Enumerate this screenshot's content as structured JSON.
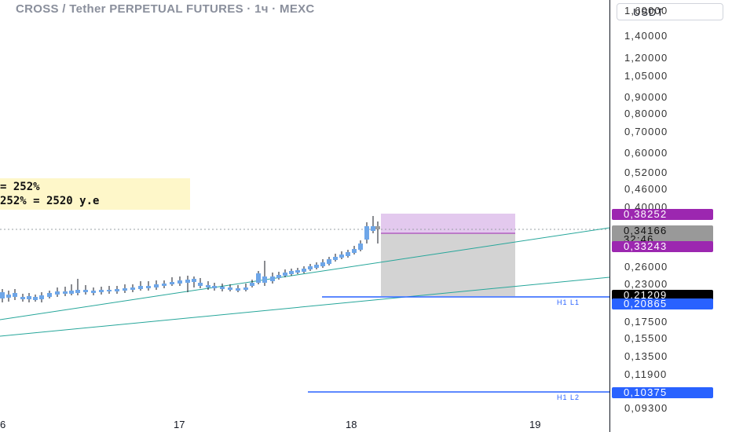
{
  "header": {
    "title": "CROSS / Tether PERPETUAL FUTURES · 1ч · MEXC"
  },
  "note": {
    "line1": "= 252%",
    "line2": "252% = 2520 у.е"
  },
  "axis": {
    "currency": "USDT",
    "price_labels": [
      "1,60000",
      "1,40000",
      "1,20000",
      "1,05000",
      "0,90000",
      "0,80000",
      "0,70000",
      "0,60000",
      "0,52000",
      "0,46000",
      "0,40000",
      "0,26000",
      "0,23000",
      "0,17500",
      "0,15500",
      "0,13500",
      "0,11900",
      "0,09300"
    ],
    "tags": {
      "take_profit": "0,38252",
      "last_price": "0,34166",
      "countdown": "32:46",
      "entry": "0,33243",
      "low_price": "0,21209",
      "h1_l1_price": "0,20865",
      "h1_l2_price": "0,10375"
    }
  },
  "levels": {
    "h1_l1": "H1 L1",
    "h1_l2": "H1 L2"
  },
  "x_axis": {
    "labels": [
      "6",
      "17",
      "18",
      "19"
    ]
  },
  "colors": {
    "candle_up": "#6ea6e8",
    "candle_wick": "#131722",
    "level_line": "#2962ff",
    "trend_line": "#26a69a",
    "profit_zone": "#e1c5ef",
    "stop_zone": "#d2d2d2",
    "tag_purple": "#9c27b0",
    "tag_blue": "#2962ff",
    "tag_black": "#000000"
  },
  "chart_data": {
    "type": "candlestick",
    "symbol": "CROSS / Tether PERPETUAL FUTURES",
    "interval": "1ч",
    "exchange": "MEXC",
    "x_ticks": [
      "6",
      "17",
      "18",
      "19"
    ],
    "scale": "log",
    "last_price": 0.34166,
    "levels": [
      {
        "name": "H1 L1",
        "price": 0.20865
      },
      {
        "name": "H1 L2",
        "price": 0.10375
      }
    ],
    "position": {
      "entry": 0.33243,
      "take_profit": 0.38252,
      "stop": 0.21209
    }
  }
}
